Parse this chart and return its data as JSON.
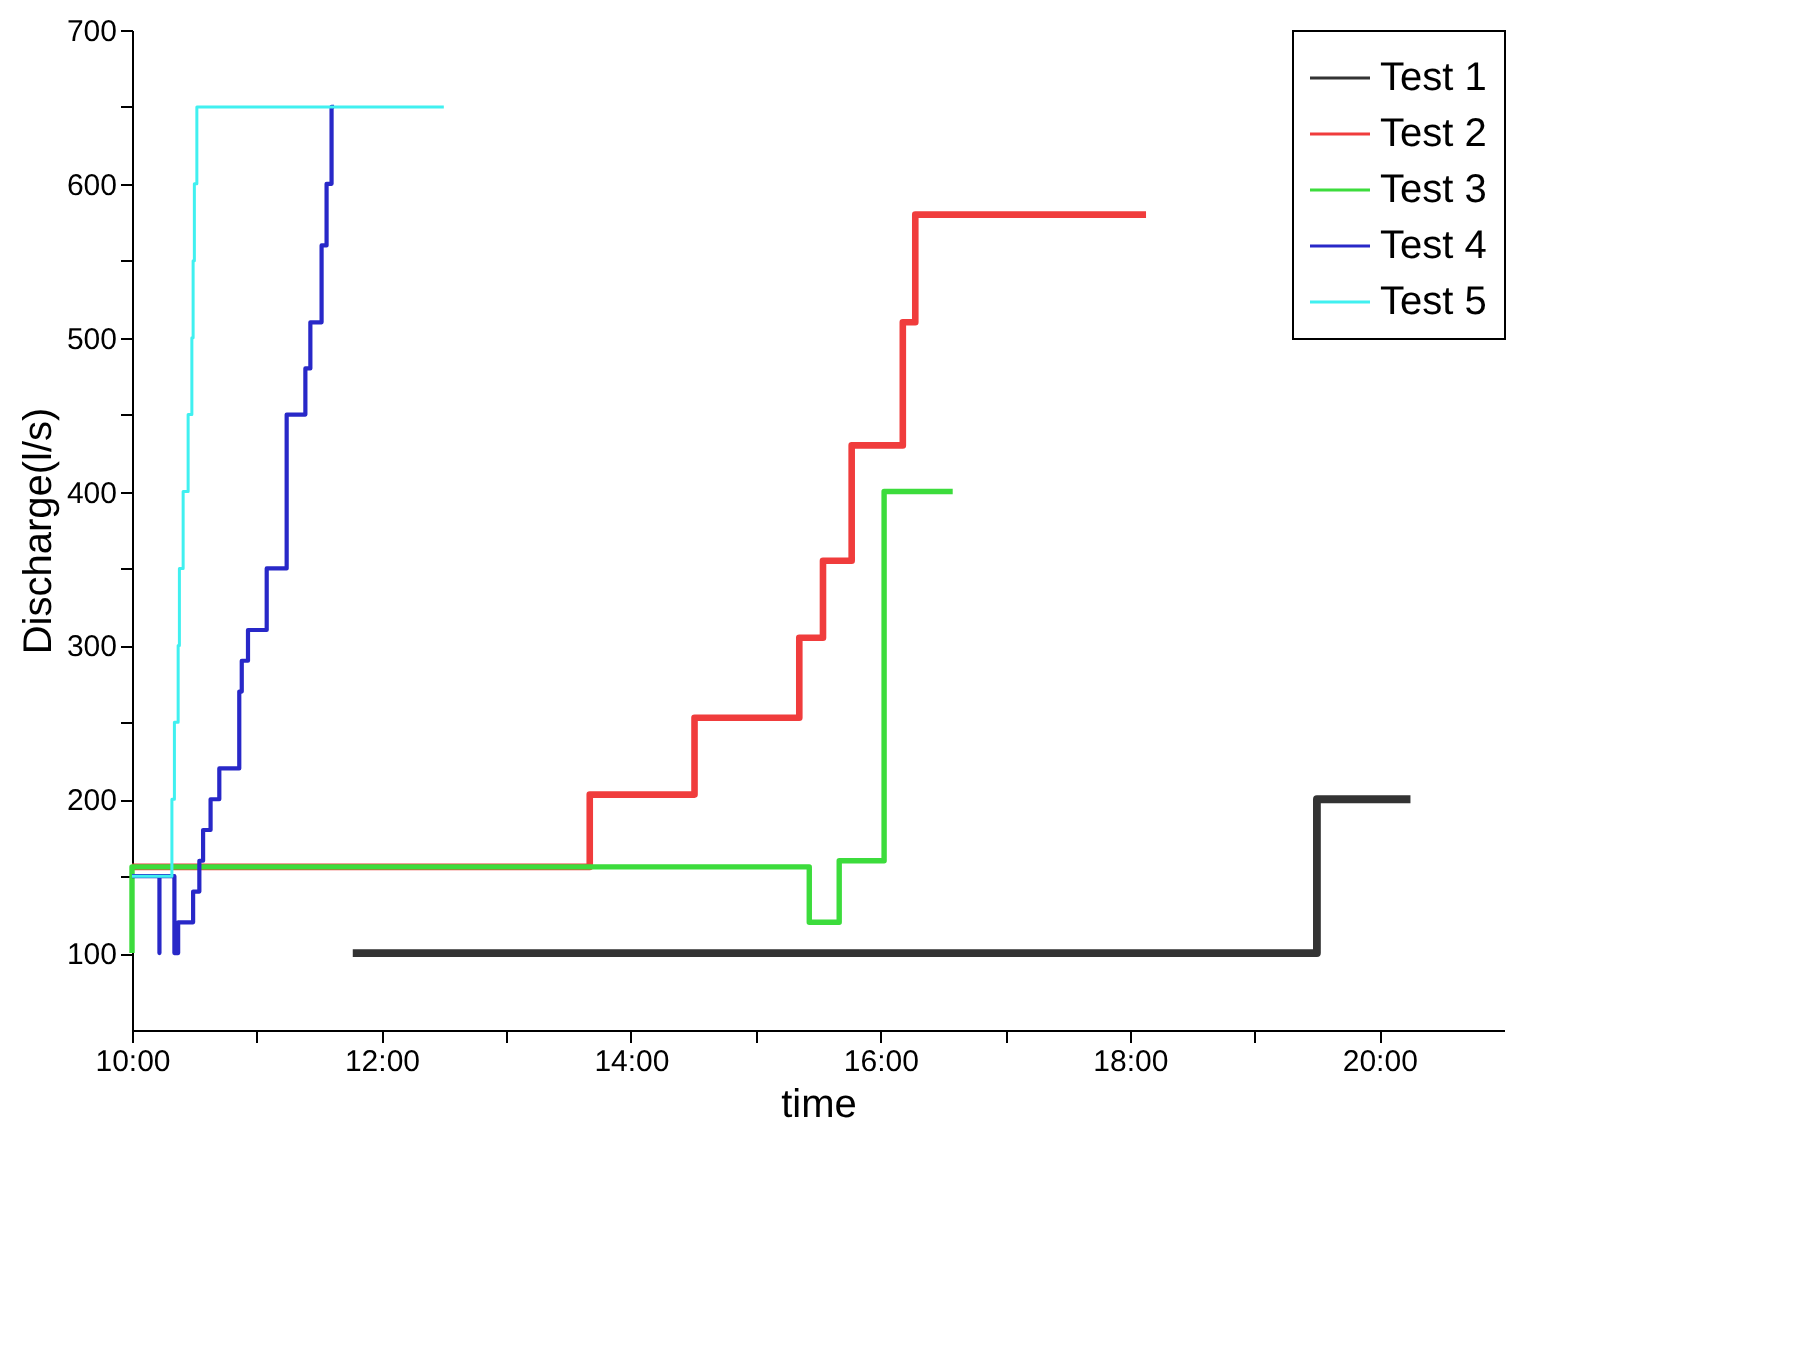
{
  "chart_data": {
    "type": "step",
    "xlabel": "time",
    "ylabel": "Discharge(l/s)",
    "xlim": [
      10,
      21
    ],
    "ylim": [
      50,
      700
    ],
    "xticks": [
      {
        "value": 10,
        "label": "10:00"
      },
      {
        "value": 11,
        "label": null
      },
      {
        "value": 12,
        "label": "12:00"
      },
      {
        "value": 13,
        "label": null
      },
      {
        "value": 14,
        "label": "14:00"
      },
      {
        "value": 15,
        "label": null
      },
      {
        "value": 16,
        "label": "16:00"
      },
      {
        "value": 17,
        "label": null
      },
      {
        "value": 18,
        "label": "18:00"
      },
      {
        "value": 19,
        "label": null
      },
      {
        "value": 20,
        "label": "20:00"
      }
    ],
    "yticks": [
      100,
      {
        "value": 150,
        "label": null
      },
      200,
      {
        "value": 250,
        "label": null
      },
      300,
      {
        "value": 350,
        "label": null
      },
      400,
      {
        "value": 450,
        "label": null
      },
      500,
      {
        "value": 550,
        "label": null
      },
      600,
      {
        "value": 650,
        "label": null
      },
      700
    ],
    "grid": false,
    "legend": "top right",
    "series": [
      {
        "name": "Test 1",
        "color": "#333333",
        "x": [
          11.77,
          19.5,
          20.25
        ],
        "values": [
          100,
          200,
          200
        ]
      },
      {
        "name": "Test 2",
        "color": "#f03c3c",
        "x": [
          10.0,
          13.67,
          14.51,
          15.35,
          15.54,
          15.77,
          16.18,
          16.28,
          18.13
        ],
        "values": [
          156,
          203,
          253,
          305,
          355,
          430,
          510,
          580,
          580
        ]
      },
      {
        "name": "Test 3",
        "color": "#3cdc3c",
        "x": [
          10.0,
          10.0,
          15.43,
          15.67,
          16.03,
          16.58
        ],
        "values": [
          100,
          156,
          120,
          160,
          400,
          400
        ]
      },
      {
        "name": "Test 4",
        "color": "#2828c8",
        "x": [
          10.0,
          10.22,
          10.22,
          10.34,
          10.37,
          10.49,
          10.54,
          10.57,
          10.63,
          10.7,
          10.86,
          10.88,
          10.93,
          11.08,
          11.24,
          11.39,
          11.43,
          11.52,
          11.56,
          11.6,
          11.62
        ],
        "values": [
          150,
          100,
          150,
          100,
          120,
          140,
          160,
          180,
          200,
          220,
          270,
          290,
          310,
          350,
          450,
          480,
          510,
          560,
          600,
          650,
          650
        ]
      },
      {
        "name": "Test 5",
        "color": "#40f0f0",
        "x": [
          10.0,
          10.32,
          10.34,
          10.37,
          10.38,
          10.41,
          10.45,
          10.48,
          10.49,
          10.5,
          10.52,
          12.5
        ],
        "values": [
          150,
          200,
          250,
          300,
          350,
          400,
          450,
          500,
          550,
          600,
          650,
          650
        ]
      }
    ]
  }
}
